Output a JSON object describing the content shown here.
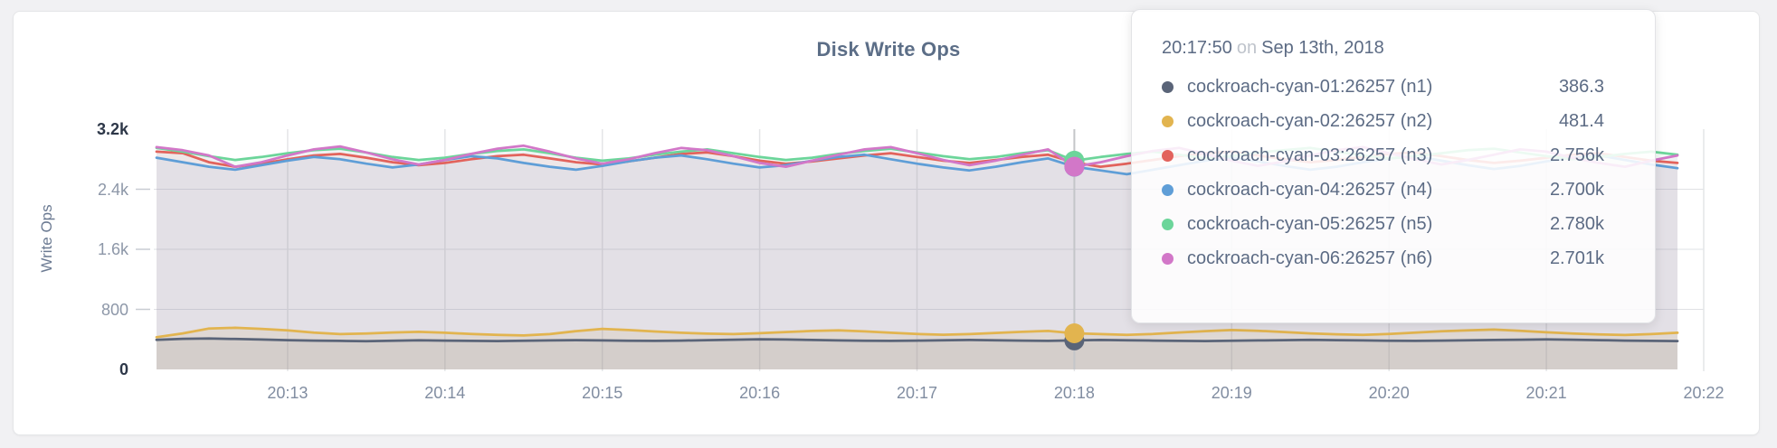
{
  "page": {
    "background": "#f1f1f3"
  },
  "chart_data": {
    "type": "line",
    "title": "Disk Write Ops",
    "ylabel": "Write Ops",
    "xlabel": "",
    "grid": true,
    "ylim": [
      0,
      3200
    ],
    "x_start": "20:12:10",
    "x_step_seconds": 10,
    "x_ticks": [
      "20:13",
      "20:14",
      "20:15",
      "20:16",
      "20:17",
      "20:18",
      "20:19",
      "20:20",
      "20:21",
      "20:22"
    ],
    "y_ticks": [
      {
        "value": 0,
        "label": "0",
        "strong": true
      },
      {
        "value": 800,
        "label": "800",
        "strong": false
      },
      {
        "value": 1600,
        "label": "1.6k",
        "strong": false
      },
      {
        "value": 2400,
        "label": "2.4k",
        "strong": false
      },
      {
        "value": 3200,
        "label": "3.2k",
        "strong": true
      }
    ],
    "series": [
      {
        "name": "cockroach-cyan-01:26257 (n1)",
        "short": "n1",
        "color": "#5a6478",
        "values": [
          395,
          408,
          412,
          405,
          398,
          390,
          384,
          380,
          376,
          382,
          388,
          384,
          380,
          378,
          382,
          386,
          390,
          386,
          382,
          380,
          384,
          390,
          396,
          402,
          398,
          392,
          386,
          382,
          380,
          384,
          388,
          392,
          388,
          384,
          380,
          386.3,
          392,
          388,
          384,
          380,
          378,
          382,
          386,
          390,
          394,
          390,
          386,
          382,
          380,
          384,
          388,
          392,
          396,
          400,
          396,
          390,
          384,
          380,
          378
        ]
      },
      {
        "name": "cockroach-cyan-02:26257 (n2)",
        "short": "n2",
        "color": "#e2b44f",
        "values": [
          430,
          480,
          545,
          555,
          540,
          520,
          490,
          470,
          478,
          492,
          500,
          488,
          472,
          460,
          452,
          470,
          510,
          540,
          525,
          505,
          488,
          476,
          470,
          482,
          498,
          512,
          520,
          506,
          488,
          472,
          462,
          470,
          486,
          500,
          512,
          481.4,
          470,
          460,
          472,
          492,
          510,
          524,
          515,
          498,
          480,
          468,
          460,
          472,
          490,
          508,
          520,
          530,
          515,
          495,
          478,
          466,
          458,
          470,
          488
        ]
      },
      {
        "name": "cockroach-cyan-03:26257 (n3)",
        "short": "n3",
        "color": "#e2635c",
        "values": [
          2900,
          2880,
          2760,
          2700,
          2740,
          2800,
          2850,
          2870,
          2820,
          2760,
          2720,
          2750,
          2800,
          2840,
          2860,
          2810,
          2760,
          2730,
          2770,
          2820,
          2870,
          2890,
          2840,
          2780,
          2740,
          2770,
          2810,
          2850,
          2880,
          2830,
          2780,
          2750,
          2790,
          2830,
          2860,
          2756,
          2700,
          2740,
          2790,
          2840,
          2880,
          2900,
          2850,
          2800,
          2760,
          2790,
          2830,
          2870,
          2890,
          2840,
          2790,
          2750,
          2780,
          2820,
          2860,
          2880,
          2830,
          2780,
          2750
        ]
      },
      {
        "name": "cockroach-cyan-04:26257 (n4)",
        "short": "n4",
        "color": "#5f9ed7",
        "values": [
          2820,
          2760,
          2700,
          2660,
          2720,
          2780,
          2830,
          2800,
          2740,
          2690,
          2730,
          2790,
          2840,
          2810,
          2750,
          2700,
          2660,
          2710,
          2770,
          2820,
          2850,
          2800,
          2740,
          2690,
          2720,
          2780,
          2830,
          2860,
          2800,
          2740,
          2690,
          2650,
          2700,
          2760,
          2810,
          2700,
          2650,
          2600,
          2660,
          2720,
          2780,
          2820,
          2770,
          2710,
          2660,
          2700,
          2760,
          2810,
          2840,
          2780,
          2720,
          2670,
          2710,
          2770,
          2820,
          2850,
          2790,
          2730,
          2680
        ]
      },
      {
        "name": "cockroach-cyan-05:26257 (n5)",
        "short": "n5",
        "color": "#6cd59a",
        "values": [
          2950,
          2900,
          2840,
          2790,
          2830,
          2880,
          2920,
          2940,
          2890,
          2830,
          2790,
          2820,
          2870,
          2910,
          2930,
          2880,
          2820,
          2780,
          2810,
          2860,
          2900,
          2930,
          2880,
          2830,
          2790,
          2820,
          2870,
          2910,
          2940,
          2890,
          2840,
          2800,
          2830,
          2880,
          2920,
          2780,
          2830,
          2870,
          2900,
          2860,
          2810,
          2840,
          2890,
          2920,
          2950,
          2900,
          2850,
          2810,
          2840,
          2880,
          2920,
          2940,
          2890,
          2840,
          2800,
          2830,
          2870,
          2900,
          2860
        ]
      },
      {
        "name": "cockroach-cyan-06:26257 (n6)",
        "short": "n6",
        "color": "#d277c8",
        "values": [
          2960,
          2920,
          2850,
          2700,
          2760,
          2850,
          2930,
          2970,
          2890,
          2800,
          2730,
          2790,
          2870,
          2940,
          2980,
          2900,
          2810,
          2740,
          2800,
          2880,
          2950,
          2920,
          2840,
          2750,
          2700,
          2780,
          2860,
          2930,
          2960,
          2880,
          2790,
          2720,
          2780,
          2860,
          2930,
          2701,
          2760,
          2840,
          2910,
          2950,
          2870,
          2780,
          2710,
          2770,
          2850,
          2920,
          2960,
          2880,
          2800,
          2730,
          2790,
          2860,
          2930,
          2900,
          2820,
          2750,
          2700,
          2780,
          2850
        ]
      }
    ],
    "hover": {
      "index": 35,
      "time": "20:17:50",
      "conjunction": "on",
      "date": "Sep 13th, 2018",
      "rows": [
        {
          "name": "cockroach-cyan-01:26257 (n1)",
          "value": "386.3"
        },
        {
          "name": "cockroach-cyan-02:26257 (n2)",
          "value": "481.4"
        },
        {
          "name": "cockroach-cyan-03:26257 (n3)",
          "value": "2.756k"
        },
        {
          "name": "cockroach-cyan-04:26257 (n4)",
          "value": "2.700k"
        },
        {
          "name": "cockroach-cyan-05:26257 (n5)",
          "value": "2.780k"
        },
        {
          "name": "cockroach-cyan-06:26257 (n6)",
          "value": "2.701k"
        }
      ]
    }
  }
}
